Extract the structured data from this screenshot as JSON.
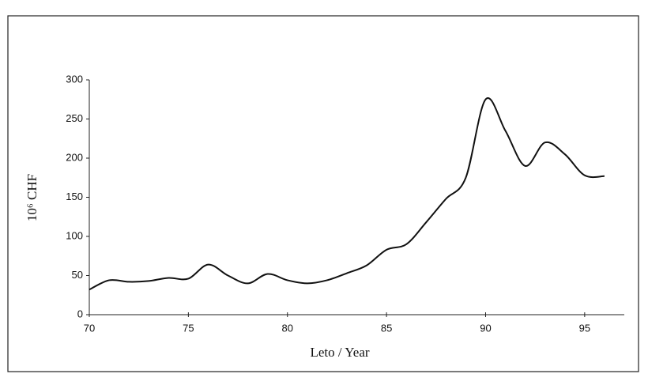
{
  "chart_data": {
    "type": "line",
    "xlabel": "Leto / Year",
    "ylabel": "10⁶ CHF",
    "x": [
      70,
      71,
      72,
      73,
      74,
      75,
      76,
      77,
      78,
      79,
      80,
      81,
      82,
      83,
      84,
      85,
      86,
      87,
      88,
      89,
      90,
      91,
      92,
      93,
      94,
      95,
      96
    ],
    "series": [
      {
        "color": "#111111",
        "values": [
          32,
          44,
          42,
          43,
          47,
          46,
          64,
          50,
          40,
          52,
          44,
          40,
          44,
          53,
          63,
          83,
          90,
          118,
          148,
          175,
          275,
          235,
          190,
          220,
          205,
          178,
          177
        ]
      }
    ],
    "xlim": [
      70,
      97
    ],
    "xticks": [
      70,
      75,
      80,
      85,
      90,
      95
    ],
    "ylim": [
      0,
      300
    ],
    "yticks": [
      0,
      50,
      100,
      150,
      200,
      250,
      300
    ],
    "grid": false
  }
}
